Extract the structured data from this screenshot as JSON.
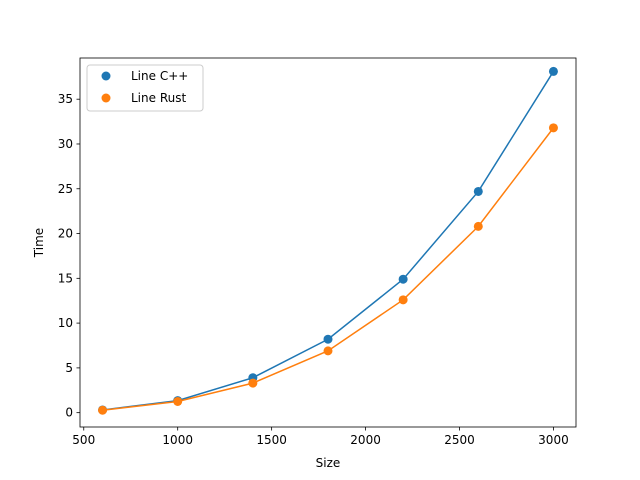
{
  "chart_data": {
    "type": "line",
    "title": "",
    "xlabel": "Size",
    "ylabel": "Time",
    "x": [
      600,
      1000,
      1400,
      1800,
      2200,
      2600,
      3000
    ],
    "series": [
      {
        "name": "Line C++",
        "color": "#1f77b4",
        "values": [
          0.3,
          1.35,
          3.9,
          8.2,
          14.9,
          24.7,
          38.1
        ]
      },
      {
        "name": "Line Rust",
        "color": "#ff7f0e",
        "values": [
          0.27,
          1.25,
          3.3,
          6.9,
          12.6,
          20.8,
          31.8
        ]
      }
    ],
    "xlim": [
      480,
      3120
    ],
    "ylim": [
      -1.6,
      39.6
    ],
    "xticks": [
      500,
      1000,
      1500,
      2000,
      2500,
      3000
    ],
    "yticks": [
      0,
      5,
      10,
      15,
      20,
      25,
      30,
      35
    ],
    "grid": false,
    "legend_position": "upper-left",
    "markers": "circle"
  }
}
